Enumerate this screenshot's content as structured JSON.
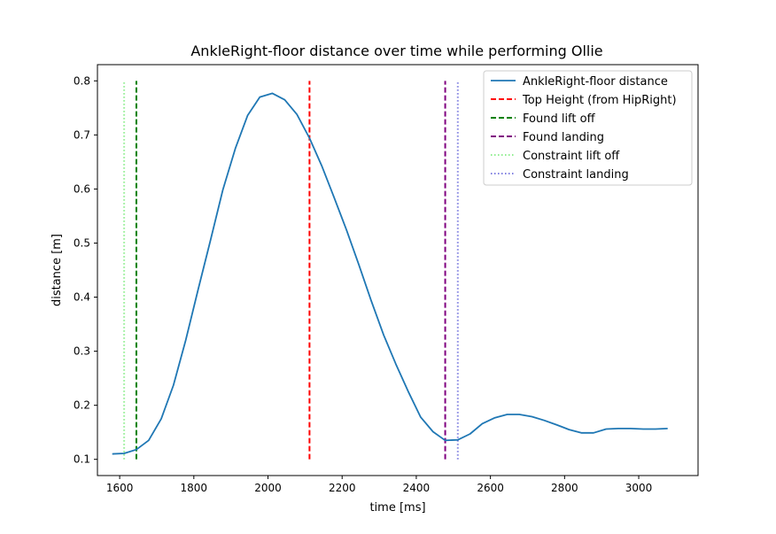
{
  "chart_data": {
    "type": "line",
    "title": "AnkleRight-floor distance over time while performing Ollie",
    "xlabel": "time [ms]",
    "ylabel": "distance [m]",
    "xlim": [
      1540,
      3160
    ],
    "ylim": [
      0.07,
      0.83
    ],
    "xticks": [
      1600,
      1800,
      2000,
      2200,
      2400,
      2600,
      2800,
      3000
    ],
    "yticks": [
      0.1,
      0.2,
      0.3,
      0.4,
      0.5,
      0.6,
      0.7,
      0.8
    ],
    "grid": false,
    "legend_position": "top-right",
    "series": [
      {
        "name": "AnkleRight-floor distance",
        "color": "#1f77b4",
        "style": "solid",
        "x": [
          1580,
          1612,
          1645,
          1678,
          1712,
          1745,
          1778,
          1812,
          1845,
          1878,
          1912,
          1945,
          1978,
          2012,
          2045,
          2078,
          2112,
          2145,
          2178,
          2212,
          2245,
          2278,
          2312,
          2345,
          2378,
          2412,
          2445,
          2478,
          2512,
          2545,
          2578,
          2612,
          2645,
          2678,
          2712,
          2745,
          2778,
          2812,
          2845,
          2878,
          2912,
          2945,
          2978,
          3012,
          3045,
          3078
        ],
        "y": [
          0.11,
          0.111,
          0.118,
          0.135,
          0.175,
          0.237,
          0.32,
          0.415,
          0.505,
          0.598,
          0.675,
          0.736,
          0.77,
          0.777,
          0.765,
          0.738,
          0.694,
          0.643,
          0.585,
          0.524,
          0.46,
          0.394,
          0.33,
          0.276,
          0.226,
          0.178,
          0.151,
          0.135,
          0.136,
          0.147,
          0.166,
          0.177,
          0.183,
          0.183,
          0.179,
          0.172,
          0.164,
          0.155,
          0.149,
          0.149,
          0.156,
          0.157,
          0.157,
          0.156,
          0.156,
          0.157
        ]
      },
      {
        "name": "Top Height (from HipRight)",
        "color": "#ff0000",
        "style": "dashed",
        "vline_x": 2112,
        "y_range": [
          0.1,
          0.8
        ]
      },
      {
        "name": "Found lift off",
        "color": "#008000",
        "style": "dashed",
        "vline_x": 1645,
        "y_range": [
          0.1,
          0.8
        ]
      },
      {
        "name": "Found landing",
        "color": "#800080",
        "style": "dashed",
        "vline_x": 2478,
        "y_range": [
          0.1,
          0.8
        ]
      },
      {
        "name": "Constraint lift off",
        "color": "#90ee90",
        "style": "dotted",
        "vline_x": 1612,
        "y_range": [
          0.1,
          0.8
        ]
      },
      {
        "name": "Constraint landing",
        "color": "#8080e0",
        "style": "dotted",
        "vline_x": 2512,
        "y_range": [
          0.1,
          0.8
        ]
      }
    ]
  }
}
